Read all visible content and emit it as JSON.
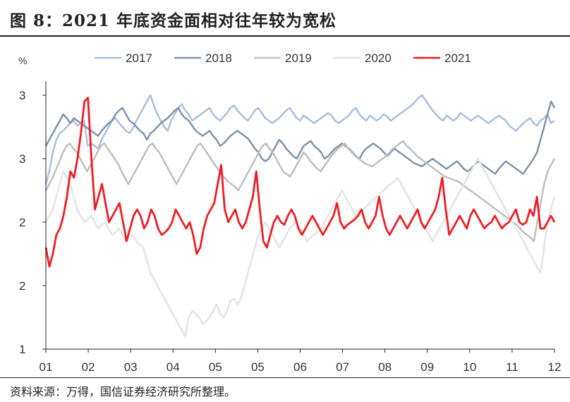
{
  "title": "图 8：2021 年底资金面相对往年较为宽松",
  "source": "资料来源：万得，国信证券经济研究所整理。",
  "chart_data": {
    "type": "line",
    "unit_label": "%",
    "x_ticks": [
      "01",
      "02",
      "03",
      "04",
      "05",
      "05",
      "06",
      "07",
      "08",
      "09",
      "10",
      "11",
      "12"
    ],
    "y_ticks": [
      "1",
      "2",
      "2",
      "3",
      "3"
    ],
    "y_tick_values": [
      1.0,
      1.5,
      2.0,
      2.5,
      3.0
    ],
    "ylim": [
      1.0,
      3.0
    ],
    "xlim": [
      0,
      12
    ],
    "legend_position": "top",
    "series": [
      {
        "name": "2017",
        "color": "#a9bfe0",
        "width": 2.5,
        "values": [
          2.3,
          2.4,
          2.55,
          2.65,
          2.7,
          2.72,
          2.75,
          2.78,
          2.8,
          2.76,
          2.78,
          2.8,
          2.6,
          2.62,
          2.6,
          2.58,
          2.65,
          2.7,
          2.75,
          2.8,
          2.82,
          2.78,
          2.75,
          2.72,
          2.7,
          2.74,
          2.8,
          2.85,
          2.9,
          2.95,
          3.0,
          2.92,
          2.85,
          2.8,
          2.75,
          2.72,
          2.8,
          2.85,
          2.9,
          2.93,
          2.88,
          2.85,
          2.8,
          2.82,
          2.84,
          2.86,
          2.88,
          2.9,
          2.85,
          2.82,
          2.8,
          2.83,
          2.86,
          2.9,
          2.92,
          2.88,
          2.85,
          2.82,
          2.8,
          2.84,
          2.88,
          2.9,
          2.86,
          2.82,
          2.8,
          2.78,
          2.8,
          2.82,
          2.85,
          2.88,
          2.9,
          2.86,
          2.82,
          2.8,
          2.84,
          2.82,
          2.8,
          2.78,
          2.8,
          2.82,
          2.84,
          2.86,
          2.84,
          2.8,
          2.78,
          2.8,
          2.82,
          2.84,
          2.88,
          2.9,
          2.85,
          2.82,
          2.8,
          2.84,
          2.82,
          2.8,
          2.82,
          2.85,
          2.83,
          2.8,
          2.82,
          2.84,
          2.86,
          2.88,
          2.9,
          2.92,
          2.95,
          2.98,
          3.0,
          2.96,
          2.92,
          2.88,
          2.85,
          2.82,
          2.8,
          2.84,
          2.82,
          2.8,
          2.82,
          2.86,
          2.84,
          2.82,
          2.8,
          2.82,
          2.84,
          2.82,
          2.8,
          2.78,
          2.8,
          2.82,
          2.84,
          2.82,
          2.8,
          2.76,
          2.74,
          2.72,
          2.75,
          2.78,
          2.8,
          2.82,
          2.78,
          2.76,
          2.8,
          2.82,
          2.85,
          2.78,
          2.8
        ]
      },
      {
        "name": "2018",
        "color": "#8094ab",
        "width": 2.5,
        "values": [
          2.6,
          2.65,
          2.7,
          2.75,
          2.8,
          2.85,
          2.82,
          2.78,
          2.82,
          2.8,
          2.78,
          2.76,
          2.74,
          2.72,
          2.7,
          2.68,
          2.72,
          2.75,
          2.78,
          2.8,
          2.85,
          2.88,
          2.9,
          2.85,
          2.8,
          2.78,
          2.75,
          2.72,
          2.7,
          2.65,
          2.7,
          2.72,
          2.75,
          2.78,
          2.8,
          2.82,
          2.85,
          2.88,
          2.9,
          2.85,
          2.82,
          2.8,
          2.76,
          2.72,
          2.7,
          2.68,
          2.7,
          2.72,
          2.68,
          2.65,
          2.6,
          2.62,
          2.65,
          2.68,
          2.7,
          2.72,
          2.7,
          2.68,
          2.66,
          2.62,
          2.58,
          2.55,
          2.5,
          2.48,
          2.5,
          2.55,
          2.6,
          2.65,
          2.62,
          2.58,
          2.55,
          2.52,
          2.5,
          2.55,
          2.6,
          2.62,
          2.64,
          2.6,
          2.58,
          2.55,
          2.5,
          2.52,
          2.55,
          2.58,
          2.6,
          2.62,
          2.6,
          2.58,
          2.55,
          2.52,
          2.5,
          2.55,
          2.58,
          2.6,
          2.62,
          2.6,
          2.58,
          2.55,
          2.52,
          2.55,
          2.58,
          2.56,
          2.54,
          2.52,
          2.5,
          2.48,
          2.46,
          2.45,
          2.44,
          2.46,
          2.48,
          2.5,
          2.48,
          2.46,
          2.44,
          2.42,
          2.44,
          2.46,
          2.48,
          2.45,
          2.42,
          2.4,
          2.42,
          2.45,
          2.48,
          2.46,
          2.44,
          2.42,
          2.4,
          2.38,
          2.42,
          2.45,
          2.48,
          2.46,
          2.44,
          2.42,
          2.4,
          2.38,
          2.42,
          2.46,
          2.5,
          2.55,
          2.65,
          2.75,
          2.85,
          2.95,
          2.9
        ]
      },
      {
        "name": "2019",
        "color": "#bfbfbf",
        "width": 2.5,
        "values": [
          2.25,
          2.3,
          2.35,
          2.42,
          2.48,
          2.55,
          2.6,
          2.62,
          2.58,
          2.55,
          2.5,
          2.45,
          2.4,
          2.45,
          2.5,
          2.55,
          2.6,
          2.62,
          2.58,
          2.54,
          2.5,
          2.46,
          2.4,
          2.35,
          2.3,
          2.35,
          2.4,
          2.45,
          2.5,
          2.55,
          2.6,
          2.62,
          2.58,
          2.55,
          2.5,
          2.45,
          2.4,
          2.35,
          2.3,
          2.35,
          2.4,
          2.45,
          2.5,
          2.55,
          2.6,
          2.62,
          2.58,
          2.54,
          2.5,
          2.46,
          2.42,
          2.38,
          2.35,
          2.32,
          2.3,
          2.28,
          2.25,
          2.3,
          2.35,
          2.4,
          2.45,
          2.5,
          2.55,
          2.6,
          2.62,
          2.58,
          2.55,
          2.5,
          2.45,
          2.4,
          2.38,
          2.36,
          2.4,
          2.45,
          2.5,
          2.55,
          2.52,
          2.48,
          2.45,
          2.42,
          2.4,
          2.44,
          2.48,
          2.52,
          2.55,
          2.58,
          2.6,
          2.62,
          2.58,
          2.55,
          2.52,
          2.5,
          2.48,
          2.46,
          2.45,
          2.44,
          2.46,
          2.48,
          2.5,
          2.52,
          2.55,
          2.58,
          2.6,
          2.62,
          2.64,
          2.6,
          2.58,
          2.55,
          2.52,
          2.5,
          2.48,
          2.46,
          2.44,
          2.42,
          2.4,
          2.38,
          2.36,
          2.35,
          2.34,
          2.33,
          2.32,
          2.3,
          2.28,
          2.26,
          2.24,
          2.22,
          2.2,
          2.18,
          2.16,
          2.14,
          2.12,
          2.1,
          2.08,
          2.06,
          2.04,
          2.02,
          2.0,
          1.98,
          1.95,
          1.92,
          1.9,
          1.88,
          1.85,
          2.0,
          2.15,
          2.3,
          2.4,
          2.45,
          2.5
        ]
      },
      {
        "name": "2020",
        "color": "#e4e4e4",
        "width": 2.5,
        "values": [
          2.0,
          2.05,
          2.1,
          2.2,
          2.3,
          2.4,
          2.35,
          2.3,
          2.2,
          2.1,
          2.05,
          2.0,
          2.02,
          2.05,
          2.0,
          1.95,
          1.98,
          2.0,
          1.95,
          1.9,
          1.92,
          1.95,
          1.9,
          1.85,
          1.88,
          1.9,
          1.85,
          1.82,
          1.8,
          1.7,
          1.6,
          1.55,
          1.5,
          1.45,
          1.4,
          1.35,
          1.3,
          1.25,
          1.2,
          1.15,
          1.1,
          1.25,
          1.3,
          1.28,
          1.25,
          1.2,
          1.22,
          1.25,
          1.3,
          1.35,
          1.28,
          1.25,
          1.3,
          1.38,
          1.4,
          1.35,
          1.4,
          1.5,
          1.6,
          1.7,
          1.8,
          1.9,
          1.95,
          2.0,
          1.95,
          1.9,
          1.85,
          1.8,
          1.85,
          1.9,
          1.95,
          1.98,
          2.0,
          1.95,
          1.9,
          1.85,
          1.88,
          1.9,
          1.92,
          1.95,
          2.0,
          2.05,
          2.1,
          2.15,
          2.2,
          2.25,
          2.2,
          2.15,
          2.1,
          2.05,
          2.08,
          2.1,
          2.12,
          2.15,
          2.18,
          2.2,
          2.22,
          2.25,
          2.28,
          2.3,
          2.32,
          2.35,
          2.3,
          2.25,
          2.2,
          2.15,
          2.1,
          2.05,
          2.0,
          1.95,
          1.9,
          1.85,
          1.9,
          1.95,
          2.0,
          2.05,
          2.1,
          2.15,
          2.2,
          2.25,
          2.3,
          2.35,
          2.4,
          2.45,
          2.5,
          2.45,
          2.4,
          2.35,
          2.3,
          2.25,
          2.2,
          2.15,
          2.1,
          2.05,
          2.0,
          1.95,
          1.9,
          1.85,
          1.8,
          1.75,
          1.7,
          1.65,
          1.6,
          1.8,
          2.0,
          2.1,
          2.2
        ]
      },
      {
        "name": "2021",
        "color": "#ee1c25",
        "width": 2.8,
        "values": [
          1.8,
          1.65,
          1.75,
          1.9,
          1.95,
          2.05,
          2.2,
          2.4,
          2.35,
          2.5,
          2.7,
          2.95,
          2.98,
          2.5,
          2.1,
          2.2,
          2.3,
          2.15,
          2.0,
          2.05,
          2.1,
          2.15,
          2.0,
          1.85,
          1.95,
          2.05,
          2.1,
          2.05,
          1.95,
          2.0,
          2.1,
          2.05,
          1.95,
          1.9,
          1.92,
          1.95,
          2.0,
          2.1,
          2.05,
          2.0,
          1.95,
          2.0,
          1.9,
          1.75,
          1.8,
          1.95,
          2.05,
          2.1,
          2.15,
          2.3,
          2.45,
          2.1,
          2.0,
          2.05,
          2.1,
          2.0,
          1.95,
          2.0,
          2.1,
          2.2,
          2.4,
          2.1,
          1.85,
          1.8,
          1.9,
          2.0,
          2.05,
          2.0,
          1.98,
          2.05,
          2.1,
          2.05,
          1.95,
          1.9,
          1.95,
          2.0,
          2.05,
          2.0,
          1.95,
          1.9,
          1.95,
          2.0,
          2.05,
          2.15,
          2.0,
          1.95,
          1.98,
          2.0,
          2.02,
          2.05,
          2.1,
          2.0,
          1.95,
          2.0,
          2.05,
          2.2,
          2.05,
          1.95,
          1.9,
          1.95,
          2.0,
          2.05,
          2.0,
          1.95,
          2.0,
          2.05,
          2.1,
          2.0,
          1.95,
          2.0,
          2.05,
          2.1,
          2.2,
          2.35,
          2.1,
          1.9,
          1.95,
          2.0,
          2.05,
          2.0,
          1.95,
          2.05,
          2.1,
          2.05,
          2.0,
          1.95,
          1.98,
          2.0,
          2.05,
          2.0,
          1.95,
          1.98,
          2.0,
          2.05,
          2.1,
          2.0,
          1.98,
          2.0,
          2.1,
          2.05,
          2.2,
          1.95,
          1.95,
          2.0,
          2.05,
          2.0
        ]
      }
    ]
  }
}
